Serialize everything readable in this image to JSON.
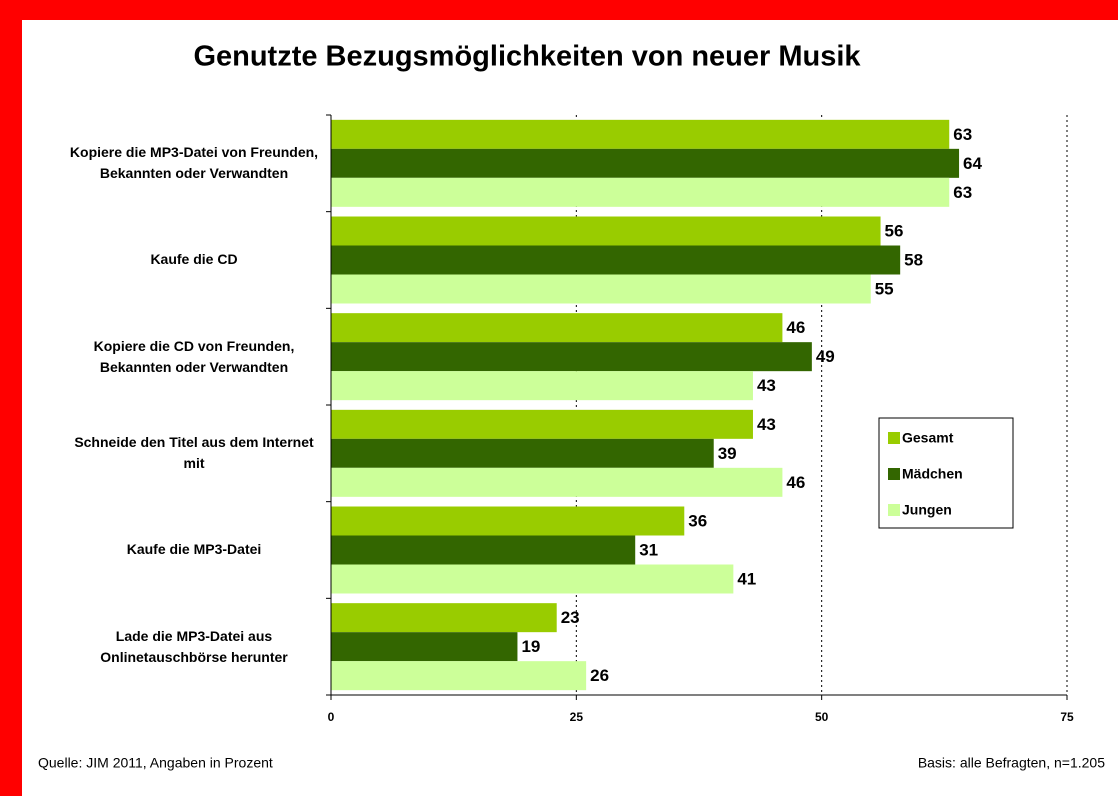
{
  "chart_data": {
    "type": "hbar",
    "title": "Genutzte Bezugsmöglichkeiten von neuer Musik",
    "categories": [
      "Kopiere die MP3-Datei von Freunden, Bekannten oder Verwandten",
      "Kaufe die CD",
      "Kopiere die CD von Freunden, Bekannten oder Verwandten",
      "Schneide den Titel aus dem Internet mit",
      "Kaufe die MP3-Datei",
      "Lade die MP3-Datei aus Onlinetauschbörse herunter"
    ],
    "series": [
      {
        "name": "Gesamt",
        "color": "#99cc00",
        "values": [
          63,
          56,
          46,
          43,
          36,
          23
        ]
      },
      {
        "name": "Mädchen",
        "color": "#336600",
        "values": [
          64,
          58,
          49,
          39,
          31,
          19
        ]
      },
      {
        "name": "Jungen",
        "color": "#ccff99",
        "values": [
          63,
          55,
          43,
          46,
          41,
          26
        ]
      }
    ],
    "xlim": [
      0,
      75
    ],
    "xticks": [
      0,
      25,
      50,
      75
    ],
    "grid": true,
    "legend": "right",
    "source": "Quelle: JIM 2011, Angaben in Prozent",
    "note": "Basis: alle Befragten, n=1.205"
  }
}
